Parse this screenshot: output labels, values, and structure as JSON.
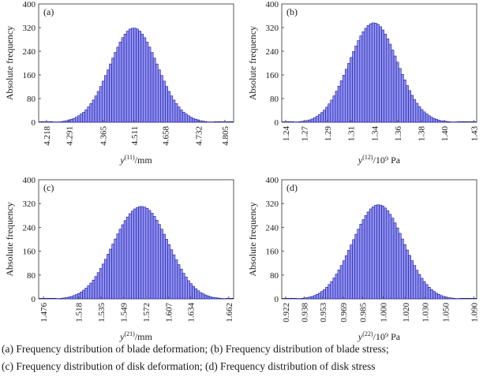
{
  "colors": {
    "bar_fill": "#8f8ff0",
    "bar_edge": "#1c1ca0",
    "axis": "#555555"
  },
  "caption": {
    "line1": "(a)  Frequency  distribution  of  blade  deformation; (b) Frequency distribution of blade stress;",
    "line2": "(c) Frequency distribution of disk deformation; (d) Frequency distribution of disk stress"
  },
  "chart_data": [
    {
      "id": "a",
      "type": "bar",
      "title": "(a)",
      "panel_label": "(a)",
      "ylabel": "Absolute frequency",
      "xlabel_var": "y",
      "xlabel_sup": "(11)",
      "xlabel_unit": "/mm",
      "ylim": [
        0,
        400
      ],
      "yticks": [
        "0",
        "80",
        "160",
        "240",
        "320",
        "400"
      ],
      "xticks": [
        "4.218",
        "4.291",
        "4.365",
        "4.511",
        "4.658",
        "4.732",
        "4.805"
      ],
      "values": [
        0,
        0,
        0,
        0,
        0,
        0,
        1,
        1,
        1,
        2,
        4,
        5,
        8,
        10,
        13,
        17,
        22,
        28,
        34,
        42,
        52,
        63,
        75,
        89,
        104,
        121,
        139,
        158,
        177,
        197,
        217,
        236,
        254,
        271,
        286,
        298,
        308,
        315,
        318,
        318,
        315,
        308,
        298,
        286,
        271,
        254,
        236,
        217,
        197,
        177,
        158,
        139,
        121,
        104,
        89,
        75,
        63,
        52,
        42,
        34,
        28,
        22,
        17,
        13,
        10,
        8,
        5,
        4,
        2,
        1,
        1,
        1,
        0,
        0,
        0,
        0,
        0,
        0,
        0,
        0
      ]
    },
    {
      "id": "b",
      "type": "bar",
      "title": "(b)",
      "panel_label": "(b)",
      "ylabel": "Absolute frequency",
      "xlabel_var": "y",
      "xlabel_sup": "(12)",
      "xlabel_unit": "/10⁹ Pa",
      "ylim": [
        0,
        400
      ],
      "yticks": [
        "0",
        "80",
        "160",
        "240",
        "320",
        "400"
      ],
      "xticks": [
        "1.24",
        "1.27",
        "1.29",
        "1.31",
        "1.34",
        "1.36",
        "1.38",
        "1.40",
        "1.43"
      ],
      "values": [
        0,
        0,
        0,
        0,
        0,
        1,
        1,
        2,
        3,
        4,
        6,
        8,
        11,
        15,
        20,
        26,
        33,
        41,
        51,
        62,
        75,
        89,
        105,
        122,
        140,
        159,
        179,
        199,
        219,
        239,
        258,
        276,
        292,
        306,
        318,
        327,
        333,
        336,
        335,
        331,
        323,
        312,
        298,
        282,
        264,
        244,
        224,
        203,
        182,
        162,
        143,
        124,
        107,
        91,
        77,
        64,
        53,
        43,
        35,
        28,
        22,
        17,
        13,
        10,
        7,
        5,
        4,
        3,
        2,
        1,
        1,
        1,
        0,
        0,
        0,
        0,
        0,
        0,
        0,
        0
      ]
    },
    {
      "id": "c",
      "type": "bar",
      "title": "(c)",
      "panel_label": "(c)",
      "ylabel": "Absolute frequency",
      "xlabel_var": "y",
      "xlabel_sup": "(21)",
      "xlabel_unit": "/mm",
      "ylim": [
        0,
        400
      ],
      "yticks": [
        "0",
        "80",
        "160",
        "240",
        "320",
        "400"
      ],
      "xticks": [
        "1.476",
        "1.518",
        "1.535",
        "1.549",
        "1.572",
        "1.607",
        "1.634",
        "1.662"
      ],
      "values": [
        0,
        0,
        0,
        0,
        0,
        0,
        0,
        1,
        1,
        2,
        3,
        4,
        6,
        8,
        11,
        14,
        18,
        23,
        29,
        36,
        44,
        53,
        63,
        75,
        88,
        102,
        117,
        133,
        150,
        167,
        184,
        201,
        218,
        234,
        249,
        263,
        275,
        286,
        295,
        302,
        307,
        310,
        310,
        308,
        304,
        297,
        288,
        277,
        264,
        250,
        234,
        217,
        200,
        182,
        165,
        148,
        131,
        115,
        100,
        86,
        73,
        61,
        51,
        42,
        34,
        27,
        21,
        17,
        13,
        10,
        7,
        5,
        4,
        3,
        2,
        1,
        1,
        0,
        0,
        0
      ]
    },
    {
      "id": "d",
      "type": "bar",
      "title": "(d)",
      "panel_label": "(d)",
      "ylabel": "Absolute frequency",
      "xlabel_var": "y",
      "xlabel_sup": "(22)",
      "xlabel_unit": "/10⁹ Pa",
      "ylim": [
        0,
        400
      ],
      "yticks": [
        "0",
        "80",
        "160",
        "240",
        "320",
        "400"
      ],
      "xticks": [
        "0.922",
        "0.938",
        "0.953",
        "0.969",
        "0.985",
        "1.000",
        "1.020",
        "1.030",
        "1.050",
        "1.090"
      ],
      "values": [
        0,
        0,
        0,
        0,
        0,
        0,
        1,
        1,
        2,
        3,
        4,
        6,
        8,
        11,
        15,
        19,
        25,
        31,
        39,
        48,
        58,
        70,
        83,
        97,
        112,
        128,
        145,
        163,
        181,
        199,
        217,
        234,
        251,
        266,
        280,
        292,
        302,
        309,
        314,
        316,
        315,
        312,
        305,
        296,
        284,
        271,
        255,
        238,
        220,
        201,
        182,
        164,
        146,
        128,
        112,
        96,
        82,
        69,
        58,
        48,
        39,
        31,
        25,
        19,
        15,
        11,
        8,
        6,
        4,
        3,
        2,
        1,
        1,
        0,
        0,
        0,
        0,
        0,
        0,
        0
      ]
    }
  ]
}
